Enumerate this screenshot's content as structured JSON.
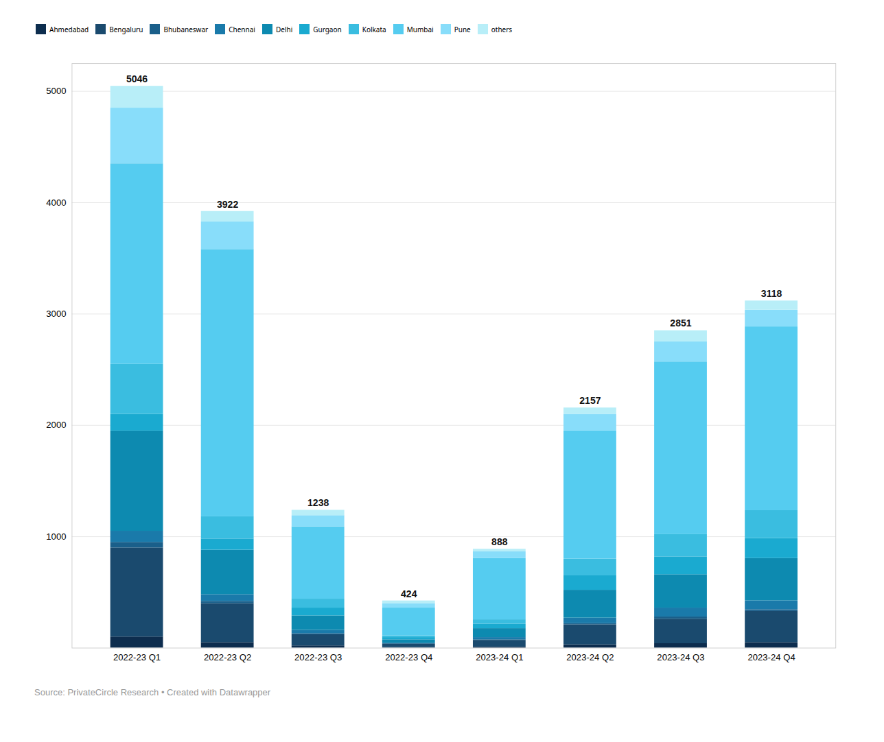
{
  "chart_data": {
    "type": "bar",
    "stacked": true,
    "categories": [
      "2022-23 Q1",
      "2022-23 Q2",
      "2022-23 Q3",
      "2022-23 Q4",
      "2023-24 Q1",
      "2023-24 Q2",
      "2023-24 Q3",
      "2023-24 Q4"
    ],
    "series": [
      {
        "name": "Ahmedabad",
        "color": "#0d2d4e",
        "values": [
          100,
          50,
          20,
          5,
          10,
          30,
          40,
          50
        ]
      },
      {
        "name": "Bengaluru",
        "color": "#1a4a6e",
        "values": [
          800,
          350,
          100,
          30,
          60,
          180,
          220,
          280
        ]
      },
      {
        "name": "Bhubaneswar",
        "color": "#1a5f8a",
        "values": [
          50,
          20,
          10,
          5,
          5,
          10,
          20,
          15
        ]
      },
      {
        "name": "Chennai",
        "color": "#1a7aaa",
        "values": [
          100,
          60,
          30,
          5,
          20,
          50,
          80,
          80
        ]
      },
      {
        "name": "Delhi",
        "color": "#0d8ab0",
        "values": [
          900,
          400,
          130,
          30,
          80,
          250,
          300,
          380
        ]
      },
      {
        "name": "Gurgaon",
        "color": "#1aaad0",
        "values": [
          150,
          100,
          70,
          20,
          40,
          130,
          160,
          180
        ]
      },
      {
        "name": "Kolkata",
        "color": "#3abde0",
        "values": [
          450,
          200,
          80,
          15,
          40,
          150,
          200,
          250
        ]
      },
      {
        "name": "Mumbai",
        "color": "#55ccf0",
        "values": [
          1800,
          2400,
          650,
          250,
          550,
          1150,
          1550,
          1650
        ]
      },
      {
        "name": "Pune",
        "color": "#88ddfa",
        "values": [
          500,
          250,
          100,
          40,
          60,
          150,
          180,
          150
        ]
      },
      {
        "name": "others",
        "color": "#b8eef8",
        "values": [
          196,
          92,
          48,
          24,
          23,
          57,
          101,
          83
        ]
      }
    ],
    "totals": [
      5046,
      3922,
      1238,
      424,
      888,
      2157,
      2851,
      3118
    ],
    "ylim": [
      0,
      5250
    ],
    "yticks": [
      1000,
      2000,
      3000,
      4000,
      5000
    ],
    "grid": true,
    "legend": "top-left",
    "caption": "Source: PrivateCircle Research • Created with Datawrapper"
  }
}
